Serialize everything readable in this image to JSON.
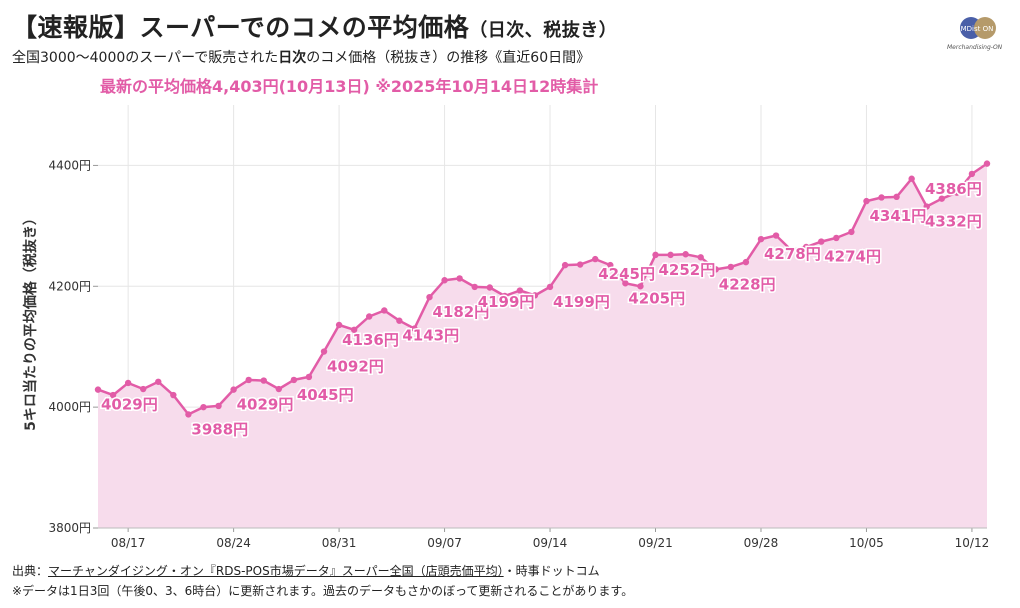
{
  "header": {
    "title": "【速報版】スーパーでのコメの平均価格",
    "title_suffix": "（日次、税抜き）",
    "subtitle_pre": "全国3000〜4000のスーパーで販売された",
    "subtitle_bold": "日次",
    "subtitle_post": "のコメ価格（税抜き）の推移《直近60日間》",
    "highlight": "最新の平均価格4,403円(10月13日) ※2025年10月14日12時集計"
  },
  "logo": {
    "mark": "MDist ON",
    "text": "Merchandising-ON"
  },
  "footer": {
    "source_prefix": "出典：",
    "source_link": "マーチャンダイジング・オン『RDS-POS市場データ』スーパー全国（店頭売価平均）",
    "source_suffix": "・時事ドットコム",
    "note": "※データは1日3回（午後0、3、6時台）に更新されます。過去のデータもさかのぼって更新されることがあります。"
  },
  "colors": {
    "line": "#e25ca7",
    "fill": "#f7dcec",
    "label": "#e25ca7",
    "grid": "#e6e6e6"
  },
  "chart_data": {
    "type": "area",
    "title": "【速報版】スーパーでのコメの平均価格（日次、税抜き）",
    "ylabel": "5キロ当たりの平均価格（税抜き）",
    "xlabel": "",
    "ylim": [
      3800,
      4500
    ],
    "yticks": [
      3800,
      4000,
      4200,
      4400
    ],
    "ytick_suffix": "円",
    "grid": true,
    "x": [
      "08/15",
      "08/16",
      "08/17",
      "08/18",
      "08/19",
      "08/20",
      "08/21",
      "08/22",
      "08/23",
      "08/24",
      "08/25",
      "08/26",
      "08/27",
      "08/28",
      "08/29",
      "08/30",
      "08/31",
      "09/01",
      "09/02",
      "09/03",
      "09/04",
      "09/05",
      "09/06",
      "09/07",
      "09/08",
      "09/09",
      "09/10",
      "09/11",
      "09/12",
      "09/13",
      "09/14",
      "09/15",
      "09/16",
      "09/17",
      "09/18",
      "09/19",
      "09/20",
      "09/21",
      "09/22",
      "09/23",
      "09/24",
      "09/25",
      "09/26",
      "09/27",
      "09/28",
      "09/29",
      "09/30",
      "10/01",
      "10/02",
      "10/03",
      "10/04",
      "10/05",
      "10/06",
      "10/07",
      "10/08",
      "10/09",
      "10/10",
      "10/11",
      "10/12",
      "10/13"
    ],
    "xtick_labels": [
      "08/17",
      "08/24",
      "08/31",
      "09/07",
      "09/14",
      "09/21",
      "09/28",
      "10/05",
      "10/12"
    ],
    "values": [
      4029,
      4020,
      4040,
      4030,
      4042,
      4020,
      3988,
      4000,
      4002,
      4029,
      4045,
      4044,
      4030,
      4045,
      4050,
      4092,
      4136,
      4128,
      4150,
      4160,
      4143,
      4130,
      4182,
      4210,
      4213,
      4199,
      4198,
      4184,
      4193,
      4185,
      4199,
      4235,
      4236,
      4245,
      4235,
      4205,
      4200,
      4252,
      4252,
      4253,
      4248,
      4228,
      4232,
      4240,
      4278,
      4284,
      4260,
      4265,
      4274,
      4280,
      4290,
      4341,
      4347,
      4348,
      4378,
      4332,
      4345,
      4355,
      4386,
      4403
    ],
    "data_labels": [
      {
        "x": "08/15",
        "text": "4029円"
      },
      {
        "x": "08/21",
        "text": "3988円"
      },
      {
        "x": "08/24",
        "text": "4029円"
      },
      {
        "x": "08/28",
        "text": "4045円"
      },
      {
        "x": "08/30",
        "text": "4092円"
      },
      {
        "x": "08/31",
        "text": "4136円"
      },
      {
        "x": "09/04",
        "text": "4143円"
      },
      {
        "x": "09/06",
        "text": "4182円"
      },
      {
        "x": "09/09",
        "text": "4199円"
      },
      {
        "x": "09/14",
        "text": "4199円"
      },
      {
        "x": "09/17",
        "text": "4245円"
      },
      {
        "x": "09/19",
        "text": "4205円"
      },
      {
        "x": "09/21",
        "text": "4252円"
      },
      {
        "x": "09/25",
        "text": "4228円"
      },
      {
        "x": "09/28",
        "text": "4278円"
      },
      {
        "x": "10/02",
        "text": "4274円"
      },
      {
        "x": "10/05",
        "text": "4341円"
      },
      {
        "x": "10/09",
        "text": "4332円"
      },
      {
        "x": "10/12",
        "text": "4386円"
      }
    ]
  }
}
